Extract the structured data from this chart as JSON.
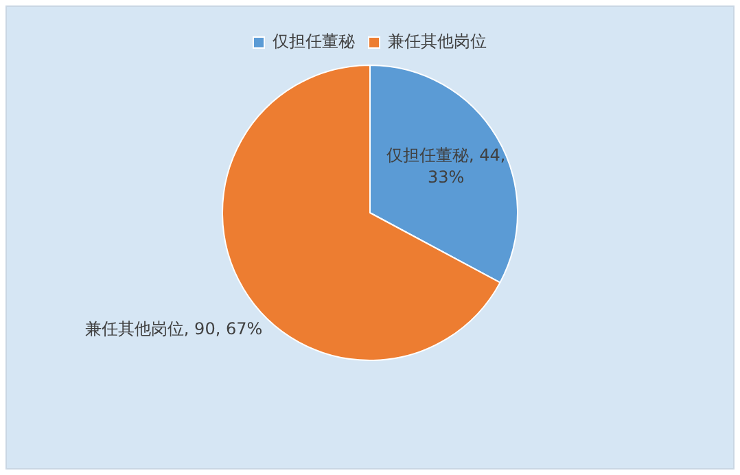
{
  "chart_data": {
    "type": "pie",
    "categories": [
      "仅担任董秘",
      "兼任其他岗位"
    ],
    "values": [
      44,
      90
    ],
    "colors": [
      "#5b9bd5",
      "#ed7d31"
    ],
    "value_labels": [
      "仅担任董秘, 44, 33%",
      "兼任其他岗位, 90, 67%"
    ],
    "legend": "top"
  }
}
